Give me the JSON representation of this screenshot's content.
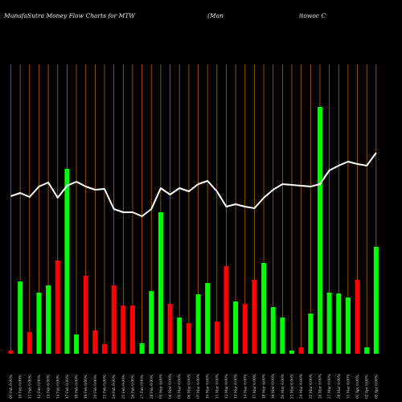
{
  "header": {
    "title": "MunafaSutra  Money Flow  Charts for MTW",
    "subtitle_left": "(Man",
    "subtitle_right": "itowoc C"
  },
  "chart_data": {
    "type": "bar",
    "title": "MunafaSutra  Money Flow  Charts for MTW",
    "categories": [
      "07 Feb 0.00%",
      "10 Feb 0.00%",
      "11 Feb 0.00%",
      "12 Feb 0.00%",
      "13 Feb 0.00%",
      "14 Feb 0.00%",
      "17 Feb 0.00%",
      "18 Feb 0.00%",
      "19 Feb 0.00%",
      "20 Feb 0.00%",
      "21 Feb 0.00%",
      "24 Feb 0.00%",
      "25 Feb 0.00%",
      "26 Feb 0.00%",
      "27 Feb 0.00%",
      "28 Feb 0.00%",
      "03 Mar 0.00%",
      "04 Mar 0.00%",
      "05 Mar 0.00%",
      "06 Mar 0.00%",
      "07 Mar 0.00%",
      "10 Mar 0.00%",
      "11 Mar 0.00%",
      "12 Mar 0.00%",
      "13 Mar 0.00%",
      "14 Mar 0.00%",
      "17 Mar 0.00%",
      "18 Mar 0.00%",
      "19 Mar 0.00%",
      "20 Mar 0.00%",
      "21 Mar 0.00%",
      "24 Mar 0.00%",
      "25 Mar 0.00%",
      "26 Mar 0.00%",
      "27 Mar 0.00%",
      "28 Mar 0.00%",
      "31 Mar 0.00%",
      "01 Apr 0.00%",
      "02 Apr 0.00%",
      "03 Apr 0.00%"
    ],
    "values": [
      4,
      90,
      27,
      76,
      85,
      116,
      230,
      24,
      97,
      29,
      12,
      85,
      60,
      60,
      13,
      78,
      176,
      62,
      45,
      38,
      74,
      88,
      40,
      109,
      65,
      62,
      92,
      113,
      58,
      45,
      4,
      8,
      50,
      307,
      76,
      75,
      70,
      92,
      8,
      133
    ],
    "colors": [
      "red",
      "green",
      "red",
      "green",
      "green",
      "red",
      "green",
      "green",
      "red",
      "red",
      "red",
      "red",
      "red",
      "red",
      "green",
      "green",
      "green",
      "red",
      "green",
      "red",
      "green",
      "green",
      "red",
      "red",
      "green",
      "red",
      "red",
      "green",
      "green",
      "green",
      "green",
      "red",
      "green",
      "green",
      "green",
      "green",
      "green",
      "red",
      "green",
      "green"
    ],
    "line": [
      244,
      240,
      245,
      232,
      227,
      246,
      231,
      226,
      232,
      236,
      235,
      260,
      264,
      264,
      269,
      260,
      234,
      242,
      234,
      238,
      229,
      225,
      238,
      257,
      254,
      257,
      259,
      246,
      236,
      229,
      230,
      231,
      232,
      229,
      212,
      206,
      201,
      204,
      206,
      190
    ],
    "palette": {
      "green": "#00ff00",
      "red": "#ff0000",
      "line": "#ffffff",
      "grid": "#b36200",
      "background": "#000000"
    }
  }
}
